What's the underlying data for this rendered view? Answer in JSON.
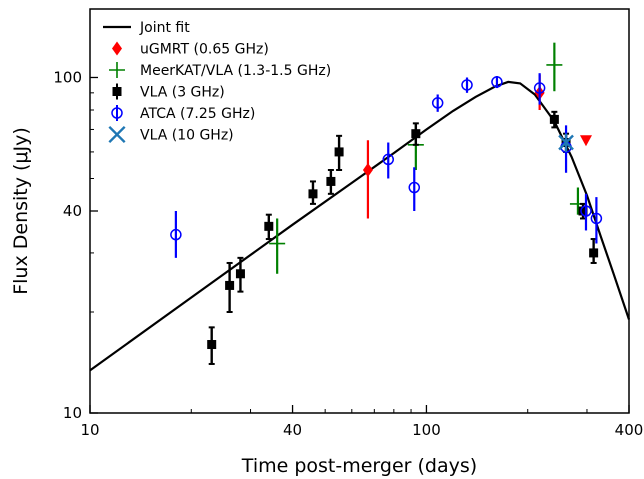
{
  "chart_data": {
    "type": "scatter",
    "xlabel": "Time post-merger (days)",
    "ylabel": "Flux Density (μJy)",
    "x_scale": "log",
    "y_scale": "log",
    "xlim": [
      10,
      400
    ],
    "ylim": [
      10,
      160
    ],
    "x_ticks": [
      10,
      40,
      100,
      400
    ],
    "x_tick_labels": [
      "10",
      "40",
      "100",
      "400"
    ],
    "y_ticks": [
      10,
      40,
      100
    ],
    "y_tick_labels": [
      "10",
      "40",
      "100"
    ],
    "grid": false,
    "legend_position": "top-left",
    "model": {
      "name": "Joint fit",
      "color": "#000000",
      "points": [
        [
          10,
          13.4
        ],
        [
          20,
          22.1
        ],
        [
          40,
          36.4
        ],
        [
          60,
          48.5
        ],
        [
          80,
          59.5
        ],
        [
          100,
          70.0
        ],
        [
          120,
          79.5
        ],
        [
          140,
          87.5
        ],
        [
          160,
          94.0
        ],
        [
          175,
          97.0
        ],
        [
          190,
          96.0
        ],
        [
          210,
          89.0
        ],
        [
          240,
          74.0
        ],
        [
          270,
          58.0
        ],
        [
          300,
          44.5
        ],
        [
          330,
          33.5
        ],
        [
          360,
          26.0
        ],
        [
          400,
          19.0
        ]
      ]
    },
    "series": [
      {
        "name": "uGMRT (0.65 GHz)",
        "marker": "diamond",
        "color": "#ff0000",
        "points": [
          {
            "x": 67,
            "y": 53,
            "ylo": 38,
            "yhi": 65
          },
          {
            "x": 217,
            "y": 90,
            "ylo": 80,
            "yhi": 102
          }
        ],
        "upper_limits": [
          {
            "x": 298,
            "y": 65,
            "marker": "triangle-down"
          }
        ]
      },
      {
        "name": "MeerKAT/VLA (1.3-1.5 GHz)",
        "marker": "plus",
        "color": "#008000",
        "points": [
          {
            "x": 36,
            "y": 32,
            "ylo": 26,
            "yhi": 38
          },
          {
            "x": 93,
            "y": 63,
            "ylo": 53,
            "yhi": 73
          },
          {
            "x": 240,
            "y": 109,
            "ylo": 91,
            "yhi": 127
          },
          {
            "x": 282,
            "y": 42,
            "ylo": 39,
            "yhi": 47
          }
        ]
      },
      {
        "name": "VLA (3 GHz)",
        "marker": "square",
        "color": "#000000",
        "points": [
          {
            "x": 23,
            "y": 16,
            "ylo": 14,
            "yhi": 18
          },
          {
            "x": 26,
            "y": 24,
            "ylo": 20,
            "yhi": 28
          },
          {
            "x": 28,
            "y": 26,
            "ylo": 23,
            "yhi": 29
          },
          {
            "x": 34,
            "y": 36,
            "ylo": 33,
            "yhi": 39
          },
          {
            "x": 46,
            "y": 45,
            "ylo": 42,
            "yhi": 49
          },
          {
            "x": 52,
            "y": 49,
            "ylo": 45,
            "yhi": 53
          },
          {
            "x": 55,
            "y": 60,
            "ylo": 53,
            "yhi": 67
          },
          {
            "x": 93,
            "y": 68,
            "ylo": 63,
            "yhi": 73
          },
          {
            "x": 240,
            "y": 75,
            "ylo": 71,
            "yhi": 79
          },
          {
            "x": 260,
            "y": 64,
            "ylo": 60,
            "yhi": 68
          },
          {
            "x": 292,
            "y": 40,
            "ylo": 38,
            "yhi": 42
          },
          {
            "x": 314,
            "y": 30,
            "ylo": 28,
            "yhi": 33
          }
        ]
      },
      {
        "name": "ATCA (7.25 GHz)",
        "marker": "circle-open",
        "color": "#0000ff",
        "points": [
          {
            "x": 18,
            "y": 34,
            "ylo": 29,
            "yhi": 40
          },
          {
            "x": 77,
            "y": 57,
            "ylo": 50,
            "yhi": 64
          },
          {
            "x": 92,
            "y": 47,
            "ylo": 40,
            "yhi": 54
          },
          {
            "x": 108,
            "y": 84,
            "ylo": 79,
            "yhi": 89
          },
          {
            "x": 132,
            "y": 95,
            "ylo": 90,
            "yhi": 100
          },
          {
            "x": 162,
            "y": 97,
            "ylo": 93,
            "yhi": 101
          },
          {
            "x": 217,
            "y": 93,
            "ylo": 83,
            "yhi": 103
          },
          {
            "x": 260,
            "y": 62,
            "ylo": 52,
            "yhi": 72
          },
          {
            "x": 298,
            "y": 40,
            "ylo": 35,
            "yhi": 45
          },
          {
            "x": 320,
            "y": 38,
            "ylo": 32,
            "yhi": 44
          }
        ]
      },
      {
        "name": "VLA (10 GHz)",
        "marker": "x",
        "color": "#1f77b4",
        "points": [
          {
            "x": 260,
            "y": 64,
            "ylo": 60,
            "yhi": 68
          }
        ]
      }
    ]
  }
}
